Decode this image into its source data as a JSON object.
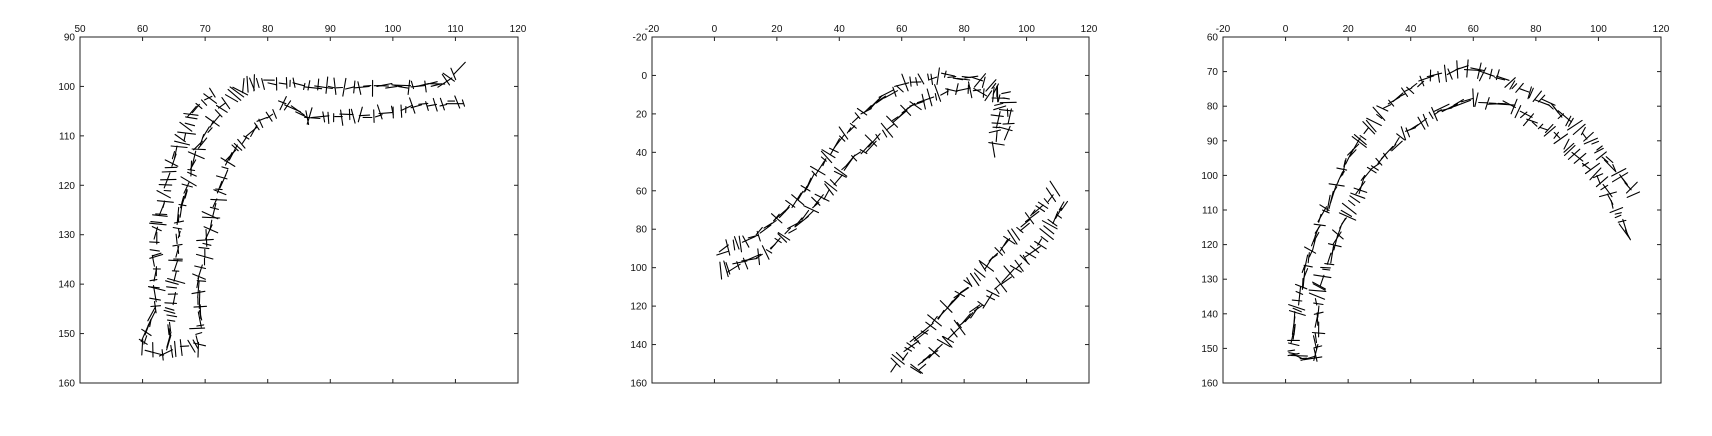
{
  "chart_data": [
    {
      "type": "line",
      "title": "",
      "xlabel": "",
      "ylabel": "",
      "xlim": [
        50,
        120
      ],
      "ylim": [
        90,
        160
      ],
      "y_inverted": true,
      "x_axis_position": "top",
      "xticks": [
        50,
        60,
        70,
        80,
        90,
        100,
        110,
        120
      ],
      "yticks": [
        90,
        100,
        110,
        120,
        130,
        140,
        150,
        160
      ],
      "grid": false,
      "legend": "none",
      "mark": "short orientation line segments",
      "series": [
        {
          "path": [
            [
              76,
              100
            ],
            [
              80,
              99
            ],
            [
              88,
              100
            ],
            [
              104,
              100
            ],
            [
              108,
              99
            ],
            [
              111,
              96
            ]
          ]
        },
        {
          "path": [
            [
              64,
              152
            ],
            [
              65,
              140
            ],
            [
              66,
              125
            ],
            [
              69,
              112
            ],
            [
              73,
              104
            ],
            [
              76,
              100
            ]
          ]
        },
        {
          "path": [
            [
              82,
              103
            ],
            [
              86,
              106
            ],
            [
              96,
              106
            ],
            [
              104,
              104
            ],
            [
              112,
              103
            ]
          ]
        },
        {
          "path": [
            [
              69,
              153
            ],
            [
              69,
              140
            ],
            [
              71,
              126
            ],
            [
              74,
              114
            ],
            [
              78,
              108
            ],
            [
              82,
              105
            ]
          ]
        },
        {
          "path": [
            [
              60,
              152
            ],
            [
              62,
              145
            ],
            [
              62,
              130
            ],
            [
              65,
              115
            ],
            [
              68,
              105
            ],
            [
              72,
              101
            ]
          ]
        },
        {
          "path": [
            [
              60,
              153
            ],
            [
              63,
              154
            ],
            [
              66,
              153
            ],
            [
              69,
              152
            ]
          ]
        }
      ]
    },
    {
      "type": "line",
      "title": "",
      "xlabel": "",
      "ylabel": "",
      "xlim": [
        -20,
        120
      ],
      "ylim": [
        -20,
        160
      ],
      "y_inverted": true,
      "x_axis_position": "top",
      "xticks": [
        -20,
        0,
        20,
        40,
        60,
        80,
        100,
        120
      ],
      "yticks": [
        -20,
        0,
        20,
        40,
        60,
        80,
        100,
        120,
        140,
        160
      ],
      "grid": false,
      "legend": "none",
      "mark": "short orientation line segments",
      "series": [
        {
          "path": [
            [
              2,
              92
            ],
            [
              15,
              82
            ],
            [
              28,
              62
            ],
            [
              38,
              38
            ],
            [
              48,
              18
            ],
            [
              60,
              5
            ],
            [
              72,
              0
            ],
            [
              84,
              2
            ],
            [
              92,
              8
            ]
          ]
        },
        {
          "path": [
            [
              2,
              102
            ],
            [
              15,
              94
            ],
            [
              30,
              72
            ],
            [
              42,
              48
            ],
            [
              55,
              28
            ],
            [
              65,
              14
            ],
            [
              75,
              8
            ],
            [
              85,
              8
            ],
            [
              92,
              12
            ]
          ]
        },
        {
          "path": [
            [
              90,
              8
            ],
            [
              91,
              20
            ],
            [
              90,
              30
            ],
            [
              90,
              40
            ]
          ]
        },
        {
          "path": [
            [
              94,
              10
            ],
            [
              94,
              22
            ],
            [
              93,
              32
            ]
          ]
        },
        {
          "path": [
            [
              57,
              152
            ],
            [
              70,
              128
            ],
            [
              85,
              102
            ],
            [
              97,
              82
            ],
            [
              110,
              58
            ]
          ]
        },
        {
          "path": [
            [
              64,
              154
            ],
            [
              78,
              132
            ],
            [
              92,
              108
            ],
            [
              104,
              88
            ],
            [
              113,
              65
            ]
          ]
        }
      ]
    },
    {
      "type": "line",
      "title": "",
      "xlabel": "",
      "ylabel": "",
      "xlim": [
        -20,
        120
      ],
      "ylim": [
        60,
        160
      ],
      "y_inverted": true,
      "x_axis_position": "top",
      "xticks": [
        -20,
        0,
        20,
        40,
        60,
        80,
        100,
        120
      ],
      "yticks": [
        60,
        70,
        80,
        90,
        100,
        110,
        120,
        130,
        140,
        150,
        160
      ],
      "grid": false,
      "legend": "none",
      "mark": "short orientation line segments",
      "series": [
        {
          "path": [
            [
              2,
              152
            ],
            [
              4,
              135
            ],
            [
              10,
              115
            ],
            [
              20,
              95
            ],
            [
              32,
              80
            ],
            [
              45,
              72
            ],
            [
              58,
              69
            ],
            [
              70,
              72
            ],
            [
              85,
              80
            ],
            [
              98,
              90
            ],
            [
              112,
              106
            ]
          ]
        },
        {
          "path": [
            [
              10,
              152
            ],
            [
              10,
              135
            ],
            [
              16,
              118
            ],
            [
              26,
              100
            ],
            [
              38,
              88
            ],
            [
              50,
              81
            ],
            [
              60,
              78
            ],
            [
              72,
              80
            ],
            [
              86,
              88
            ],
            [
              100,
              100
            ],
            [
              110,
              118
            ]
          ]
        },
        {
          "path": [
            [
              2,
              152
            ],
            [
              6,
              153
            ],
            [
              10,
              152
            ]
          ]
        }
      ]
    }
  ]
}
